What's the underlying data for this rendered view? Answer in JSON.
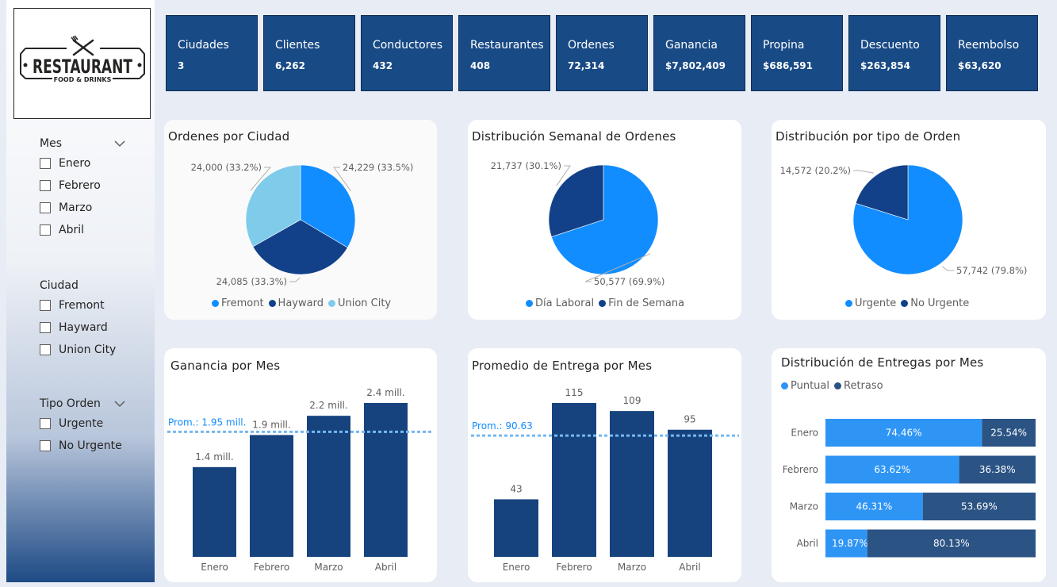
{
  "logo": {
    "name": "RESTAURANT",
    "tagline": "FOOD & DRINKS"
  },
  "slicers": {
    "mes": {
      "title": "Mes",
      "items": [
        "Enero",
        "Febrero",
        "Marzo",
        "Abril"
      ]
    },
    "ciudad": {
      "title": "Ciudad",
      "items": [
        "Fremont",
        "Hayward",
        "Union City"
      ]
    },
    "tipo": {
      "title": "Tipo Orden",
      "items": [
        "Urgente",
        "No Urgente"
      ]
    }
  },
  "kpis": [
    {
      "label": "Ciudades",
      "value": "3"
    },
    {
      "label": "Clientes",
      "value": "6,262"
    },
    {
      "label": "Conductores",
      "value": "432"
    },
    {
      "label": "Restaurantes",
      "value": "408"
    },
    {
      "label": "Ordenes",
      "value": "72,314"
    },
    {
      "label": "Ganancia",
      "value": "$7,802,409"
    },
    {
      "label": "Propina",
      "value": "$686,591"
    },
    {
      "label": "Descuento",
      "value": "$263,854"
    },
    {
      "label": "Reembolso",
      "value": "$63,620"
    }
  ],
  "colors": {
    "bright_blue": "#118dff",
    "dark_blue": "#12418a",
    "light_blue": "#7fcbea",
    "bar_navy": "#16437e",
    "avg_line": "#76b7f0",
    "bar_blue": "#2e95f5",
    "bar_steel": "#2b5384"
  },
  "chart_data": [
    {
      "type": "pie",
      "title": "Ordenes por Ciudad",
      "slices": [
        {
          "name": "Fremont",
          "value": 24229,
          "label": "24,229 (33.5%)",
          "color": "#118dff"
        },
        {
          "name": "Hayward",
          "value": 24085,
          "label": "24,085 (33.3%)",
          "color": "#12418a"
        },
        {
          "name": "Union City",
          "value": 24000,
          "label": "24,000 (33.2%)",
          "color": "#7fcbea"
        }
      ],
      "legend": [
        "Fremont",
        "Hayward",
        "Union City"
      ]
    },
    {
      "type": "pie",
      "title": "Distribución Semanal de Ordenes",
      "slices": [
        {
          "name": "Día Laboral",
          "value": 50577,
          "label": "50,577 (69.9%)",
          "color": "#118dff"
        },
        {
          "name": "Fin de Semana",
          "value": 21737,
          "label": "21,737 (30.1%)",
          "color": "#12418a"
        }
      ],
      "legend": [
        "Día Laboral",
        "Fin de Semana"
      ]
    },
    {
      "type": "pie",
      "title": "Distribución por tipo de Orden",
      "slices": [
        {
          "name": "Urgente",
          "value": 57742,
          "label": "57,742 (79.8%)",
          "color": "#118dff"
        },
        {
          "name": "No Urgente",
          "value": 14572,
          "label": "14,572 (20.2%)",
          "color": "#12418a"
        }
      ],
      "legend": [
        "Urgente",
        "No Urgente"
      ]
    },
    {
      "type": "bar",
      "title": "Ganancia por Mes",
      "categories": [
        "Enero",
        "Febrero",
        "Marzo",
        "Abril"
      ],
      "values": [
        1.4,
        1.9,
        2.2,
        2.4
      ],
      "value_labels": [
        "1.4 mill.",
        "1.9 mill.",
        "2.2 mill.",
        "2.4 mill."
      ],
      "average": 1.95,
      "average_label": "Prom.: 1.95 mill.",
      "ylim": [
        0,
        2.4
      ]
    },
    {
      "type": "bar",
      "title": "Promedio de Entrega por Mes",
      "categories": [
        "Enero",
        "Febrero",
        "Marzo",
        "Abril"
      ],
      "values": [
        43,
        115,
        109,
        95
      ],
      "value_labels": [
        "43",
        "115",
        "109",
        "95"
      ],
      "average": 90.63,
      "average_label": "Prom.: 90.63",
      "ylim": [
        0,
        115
      ]
    },
    {
      "type": "bar",
      "orientation": "horizontal-stacked-100",
      "title": "Distribución de Entregas por Mes",
      "categories": [
        "Enero",
        "Febrero",
        "Marzo",
        "Abril"
      ],
      "series": [
        {
          "name": "Puntual",
          "values": [
            74.46,
            63.62,
            46.31,
            19.87
          ],
          "labels": [
            "74.46%",
            "63.62%",
            "46.31%",
            "19.87%"
          ]
        },
        {
          "name": "Retraso",
          "values": [
            25.54,
            36.38,
            53.69,
            80.13
          ],
          "labels": [
            "25.54%",
            "36.38%",
            "53.69%",
            "80.13%"
          ]
        }
      ],
      "legend": [
        "Puntual",
        "Retraso"
      ]
    }
  ]
}
